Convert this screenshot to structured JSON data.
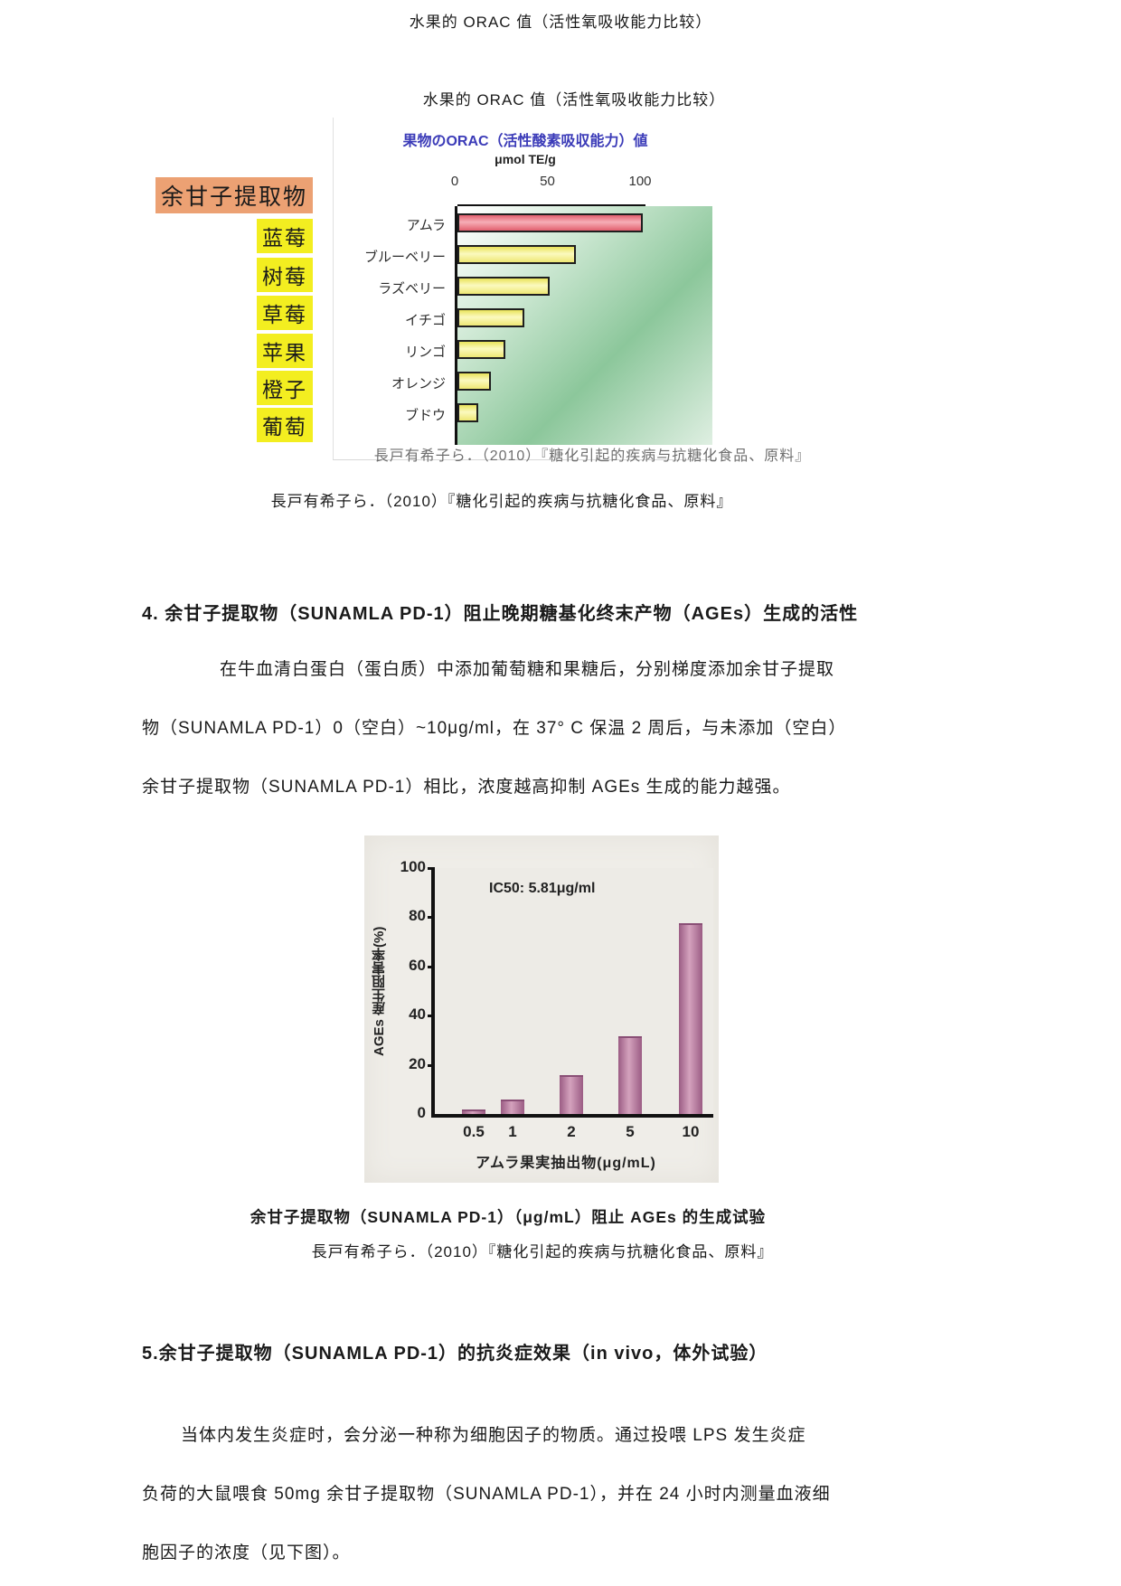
{
  "page": {
    "header_title": "水果的 ORAC 值（活性氧吸收能力比较）"
  },
  "figure1": {
    "title": "水果的 ORAC 值（活性氧吸收能力比较）",
    "caption_inner": "長戸有希子ら．（2010）『糖化引起的疾病与抗糖化食品、原料』",
    "caption_below": "長戸有希子ら．（2010）『糖化引起的疾病与抗糖化食品、原料』",
    "cn_labels": [
      {
        "text": "余甘子提取物",
        "highlight": "#eca173"
      },
      {
        "text": "蓝莓",
        "highlight": "#f3ee20"
      },
      {
        "text": "树莓",
        "highlight": "#f3ee20"
      },
      {
        "text": "草莓",
        "highlight": "#f3ee20"
      },
      {
        "text": "苹果",
        "highlight": "#f3ee20"
      },
      {
        "text": "橙子",
        "highlight": "#f3ee20"
      },
      {
        "text": "葡萄",
        "highlight": "#f3ee20"
      }
    ]
  },
  "section4": {
    "heading": "4. 余甘子提取物（SUNAMLA PD-1）阻止晚期糖基化终末产物（AGEs）生成的活性",
    "lines": [
      "在牛血清白蛋白（蛋白质）中添加葡萄糖和果糖后，分别梯度添加余甘子提取",
      "物（SUNAMLA PD-1）0（空白）~10μg/ml，在 37° C 保温 2 周后，与未添加（空白）",
      "余甘子提取物（SUNAMLA PD-1）相比，浓度越高抑制 AGEs 生成的能力越强。"
    ]
  },
  "figure2": {
    "caption_bold": "余甘子提取物（SUNAMLA PD-1）（μg/mL）阻止 AGEs 的生成试验",
    "caption_source": "長戸有希子ら．（2010）『糖化引起的疾病与抗糖化食品、原料』"
  },
  "section5": {
    "heading": "5.余甘子提取物（SUNAMLA PD-1）的抗炎症效果（in vivo，体外试验）",
    "lines": [
      "当体内发生炎症时，会分泌一种称为细胞因子的物质。通过投喂 LPS 发生炎症",
      "负荷的大鼠喂食 50mg 余甘子提取物（SUNAMLA PD-1），并在 24 小时内测量血液细",
      "胞因子的浓度（见下图）。"
    ]
  },
  "chart_data": [
    {
      "type": "bar",
      "orientation": "horizontal",
      "title": "果物のORAC（活性酸素吸収能力）値",
      "subtitle_unit": "μmol TE/g",
      "xlabel": "",
      "ylabel": "",
      "xlim": [
        0,
        100
      ],
      "xticks": [
        "0",
        "50",
        "100"
      ],
      "categories_jp": [
        "アムラ",
        "ブルーベリー",
        "ラズベリー",
        "イチゴ",
        "リンゴ",
        "オレンジ",
        "ブドウ"
      ],
      "categories_cn": [
        "余甘子提取物",
        "蓝莓",
        "树莓",
        "草莓",
        "苹果",
        "橙子",
        "葡萄"
      ],
      "values": [
        100,
        64,
        50,
        36,
        26,
        18,
        11
      ],
      "bar_colors": [
        "#ef8c99",
        "#f5f07d",
        "#f5f07d",
        "#f5f07d",
        "#f5f07d",
        "#f5f07d",
        "#f5f07d"
      ],
      "legend": "none",
      "grid": false
    },
    {
      "type": "bar",
      "orientation": "vertical",
      "title": "",
      "ylabel": "AGEs 産生阻害率(%)",
      "xlabel": "アムラ果実抽出物(μg/mL)",
      "annotation": "IC50: 5.81μg/ml",
      "categories": [
        "0.5",
        "1",
        "2",
        "5",
        "10"
      ],
      "values": [
        1,
        5,
        15,
        31,
        77
      ],
      "ylim": [
        0,
        100
      ],
      "yticks": [
        0,
        20,
        40,
        60,
        80,
        100
      ],
      "bar_color": "#a4648c",
      "legend": "none",
      "grid": false
    }
  ],
  "colors": {
    "highlight_yellow": "#f3ee20",
    "highlight_orange": "#eca173",
    "chart1_title_blue": "#3b3bb8",
    "chart1_red_bar": "#ef8c99",
    "chart1_yellow_bar": "#f5f07d",
    "chart2_bar_mauve": "#a4648c"
  }
}
